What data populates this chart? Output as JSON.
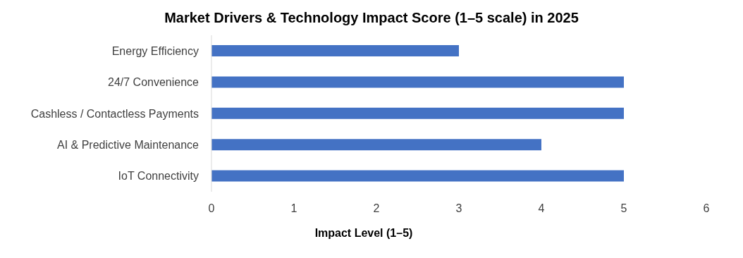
{
  "chart_data": {
    "type": "bar",
    "orientation": "horizontal",
    "title": "Market Drivers & Technology Impact Score (1–5 scale) in 2025",
    "xlabel": "Impact Level (1–5)",
    "categories": [
      "Energy Efficiency",
      "24/7 Convenience",
      "Cashless / Contactless Payments",
      "AI & Predictive Maintenance",
      "IoT Connectivity"
    ],
    "values": [
      3,
      5,
      5,
      4,
      5
    ],
    "color": "#4472c4",
    "xlim": [
      0,
      6
    ],
    "xticks": [
      0,
      1,
      2,
      3,
      4,
      5,
      6
    ]
  }
}
